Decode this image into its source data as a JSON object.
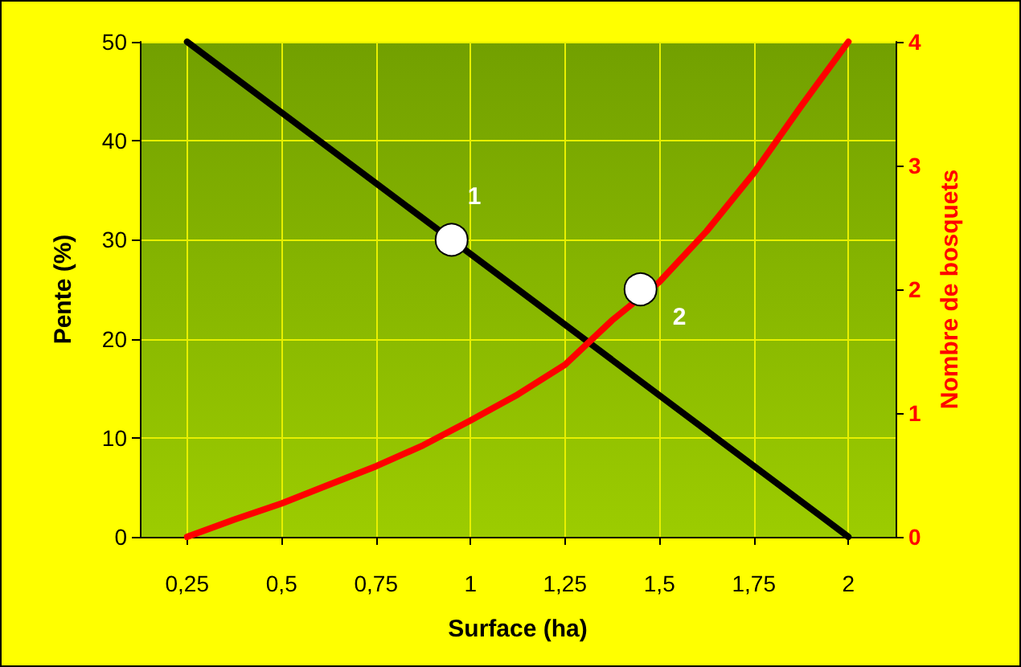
{
  "chart_data": {
    "type": "line",
    "xlabel": "Surface (ha)",
    "ylabel": "Pente (%)",
    "y2label": "Nombre de bosquets",
    "xlim": [
      0.125,
      2.125
    ],
    "xticks": [
      {
        "value": 0.25,
        "label": "0,25"
      },
      {
        "value": 0.5,
        "label": "0,5"
      },
      {
        "value": 0.75,
        "label": "0,75"
      },
      {
        "value": 1,
        "label": "1"
      },
      {
        "value": 1.25,
        "label": "1,25"
      },
      {
        "value": 1.5,
        "label": "1,5"
      },
      {
        "value": 1.75,
        "label": "1,75"
      },
      {
        "value": 2,
        "label": "2"
      }
    ],
    "ylim": [
      0,
      50
    ],
    "yticks": [
      0,
      10,
      20,
      30,
      40,
      50
    ],
    "y2lim": [
      0,
      4
    ],
    "y2ticks": [
      0,
      1,
      2,
      3,
      4
    ],
    "grid": true,
    "marker": "none",
    "line_style": "solid",
    "series": [
      {
        "color": "#000000",
        "x": [
          0.25,
          2
        ],
        "values": [
          50,
          0
        ]
      },
      {
        "axis": "y2",
        "color": "#ff0000",
        "x": [
          0.25,
          0.375,
          0.5,
          0.625,
          0.75,
          0.875,
          1,
          1.125,
          1.25,
          1.375,
          1.5,
          1.625,
          1.75,
          1.875,
          2
        ],
        "values": [
          0,
          0.14,
          0.27,
          0.42,
          0.57,
          0.74,
          0.94,
          1.15,
          1.39,
          1.75,
          2.06,
          2.47,
          2.94,
          3.48,
          4
        ]
      },
      {
        "type": "scatter",
        "marker": "circle",
        "color": "#ffffff",
        "x": [
          0.95,
          1.45
        ],
        "values": [
          30,
          25
        ]
      }
    ],
    "annotations": [
      {
        "text": "1",
        "x": 0.95,
        "y": 30
      },
      {
        "text": "2",
        "x": 1.45,
        "y": 25
      }
    ]
  }
}
